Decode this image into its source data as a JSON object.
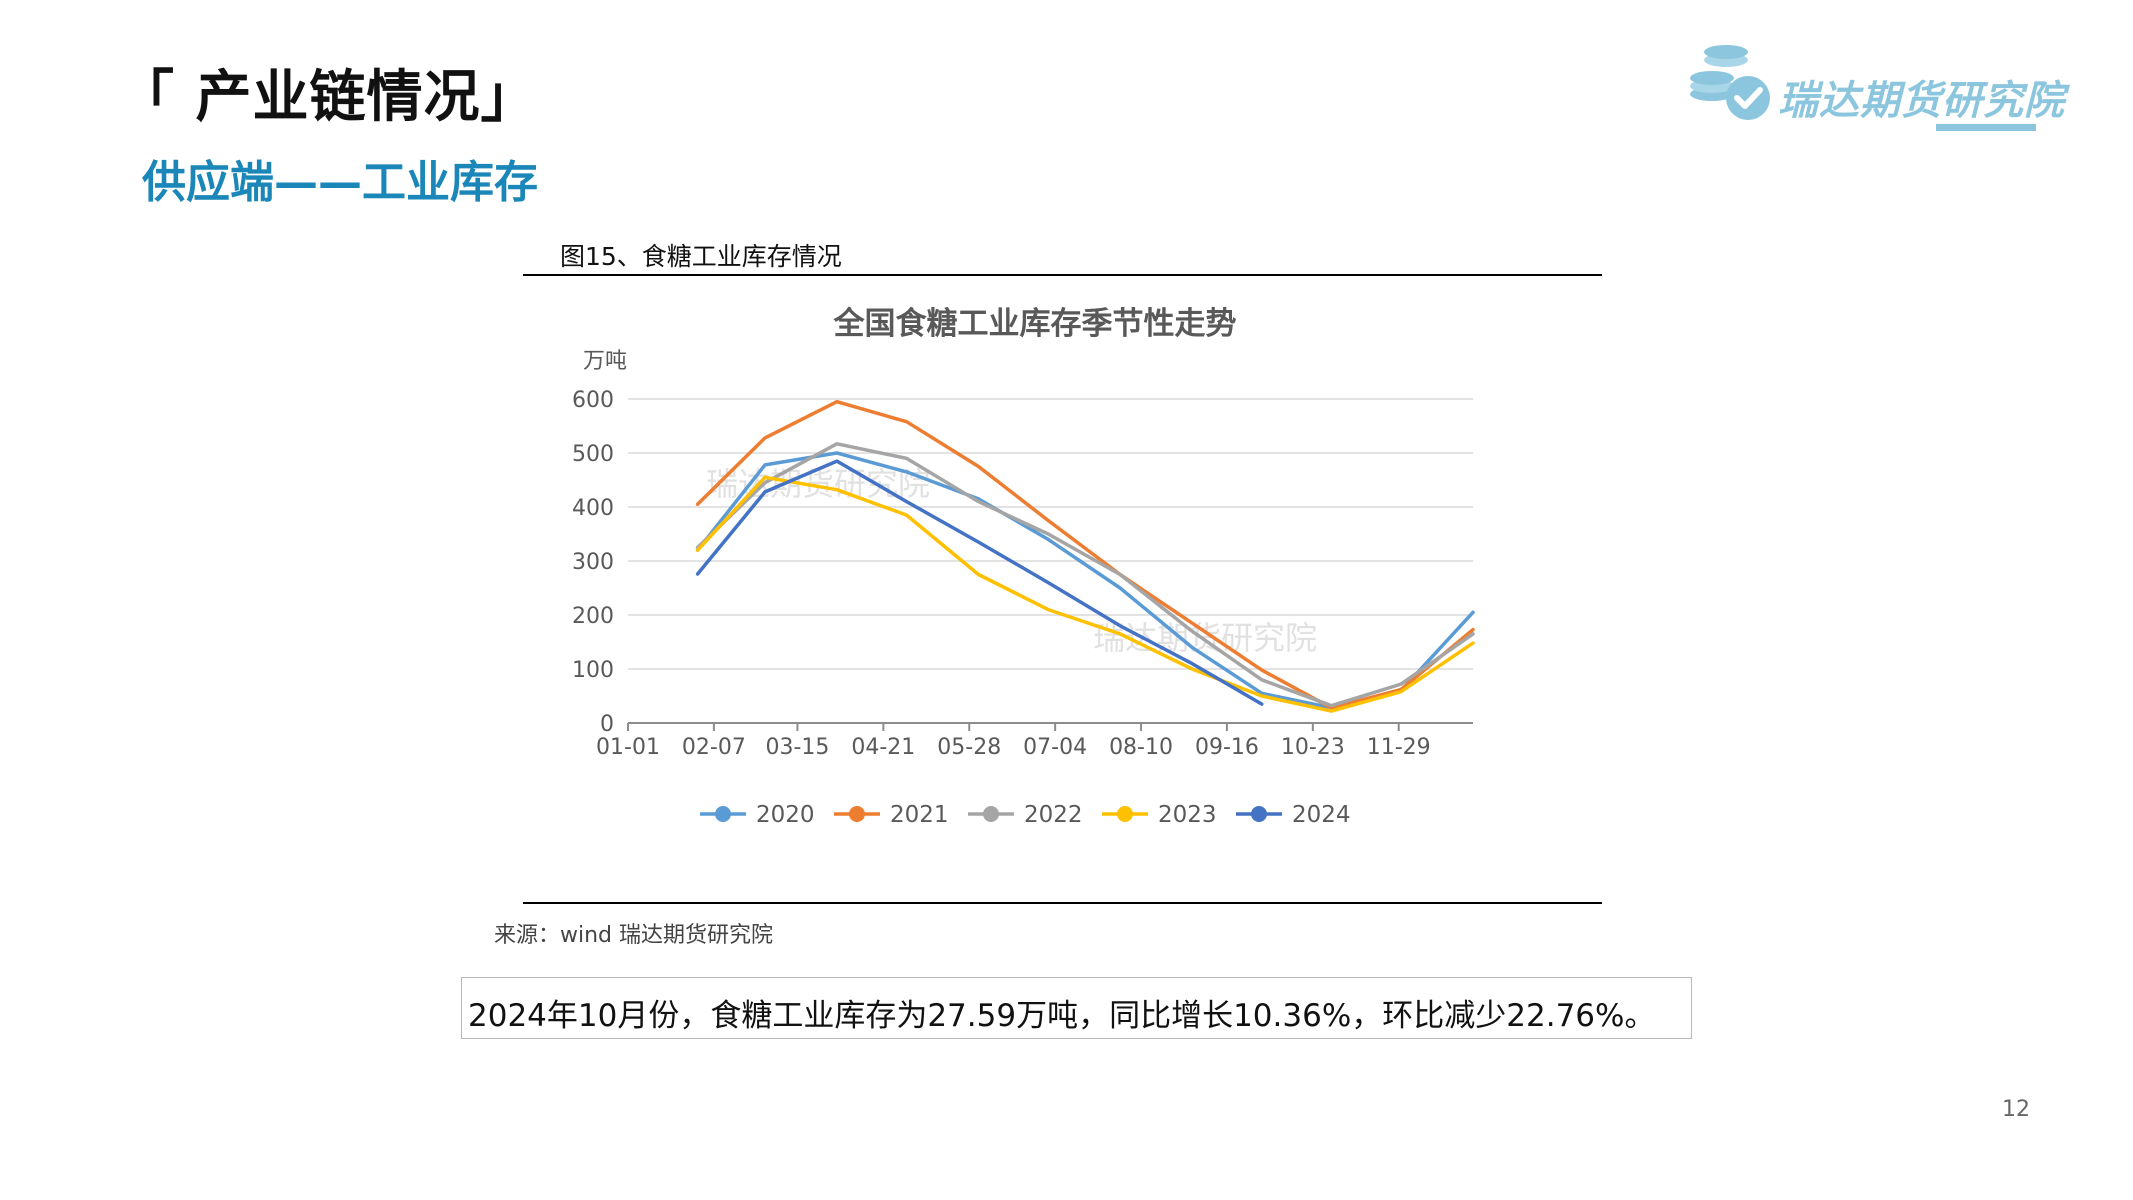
{
  "header": {
    "section_title": "「 产业链情况」",
    "subtitle": "供应端——工业库存",
    "logo_text": "瑞达期货研究院",
    "logo_icon": "coins-check-icon"
  },
  "figure": {
    "caption": "图15、食糖工业库存情况",
    "source": "来源：wind   瑞达期货研究院"
  },
  "chart_data": {
    "type": "line",
    "title": "全国食糖工业库存季节性走势",
    "ylabel": "万吨",
    "xlabel": "",
    "ylim": [
      0,
      600
    ],
    "yticks": [
      0,
      100,
      200,
      300,
      400,
      500,
      600
    ],
    "xlim": [
      "01-01",
      "12-31"
    ],
    "xticks": [
      "01-01",
      "02-07",
      "03-15",
      "04-21",
      "05-28",
      "07-04",
      "08-10",
      "09-16",
      "10-23",
      "11-29"
    ],
    "grid": true,
    "legend_position": "bottom",
    "watermark": "瑞达期货研究院",
    "series": [
      {
        "name": "2020",
        "color": "#5b9bd5",
        "points": [
          [
            "01-31",
            320
          ],
          [
            "03-01",
            478
          ],
          [
            "04-01",
            500
          ],
          [
            "05-01",
            465
          ],
          [
            "06-01",
            415
          ],
          [
            "07-01",
            340
          ],
          [
            "08-01",
            250
          ],
          [
            "09-01",
            140
          ],
          [
            "10-01",
            55
          ],
          [
            "10-31",
            28
          ],
          [
            "11-30",
            60
          ],
          [
            "12-31",
            205
          ]
        ]
      },
      {
        "name": "2021",
        "color": "#ed7d31",
        "points": [
          [
            "01-31",
            405
          ],
          [
            "03-01",
            528
          ],
          [
            "04-01",
            595
          ],
          [
            "05-01",
            558
          ],
          [
            "06-01",
            475
          ],
          [
            "07-01",
            375
          ],
          [
            "08-01",
            275
          ],
          [
            "09-01",
            185
          ],
          [
            "10-01",
            98
          ],
          [
            "10-31",
            28
          ],
          [
            "11-30",
            62
          ],
          [
            "12-31",
            173
          ]
        ]
      },
      {
        "name": "2022",
        "color": "#a5a5a5",
        "points": [
          [
            "01-31",
            325
          ],
          [
            "03-01",
            445
          ],
          [
            "04-01",
            517
          ],
          [
            "05-01",
            490
          ],
          [
            "06-01",
            410
          ],
          [
            "07-01",
            350
          ],
          [
            "08-01",
            275
          ],
          [
            "09-01",
            170
          ],
          [
            "10-01",
            80
          ],
          [
            "10-31",
            32
          ],
          [
            "11-30",
            72
          ],
          [
            "12-31",
            165
          ]
        ]
      },
      {
        "name": "2023",
        "color": "#ffc000",
        "points": [
          [
            "01-31",
            320
          ],
          [
            "03-01",
            455
          ],
          [
            "04-01",
            432
          ],
          [
            "05-01",
            385
          ],
          [
            "06-01",
            275
          ],
          [
            "07-01",
            210
          ],
          [
            "08-01",
            165
          ],
          [
            "09-01",
            100
          ],
          [
            "10-01",
            50
          ],
          [
            "10-31",
            22
          ],
          [
            "11-30",
            58
          ],
          [
            "12-31",
            148
          ]
        ]
      },
      {
        "name": "2024",
        "color": "#4472c4",
        "points": [
          [
            "01-31",
            276
          ],
          [
            "03-01",
            428
          ],
          [
            "04-01",
            485
          ],
          [
            "05-01",
            410
          ],
          [
            "06-01",
            335
          ],
          [
            "07-01",
            260
          ],
          [
            "08-01",
            180
          ],
          [
            "09-01",
            110
          ],
          [
            "10-01",
            35
          ]
        ]
      }
    ]
  },
  "summary": {
    "text": "2024年10月份，食糖工业库存为27.59万吨，同比增长10.36%，环比减少22.76%。"
  },
  "page_number": "12"
}
